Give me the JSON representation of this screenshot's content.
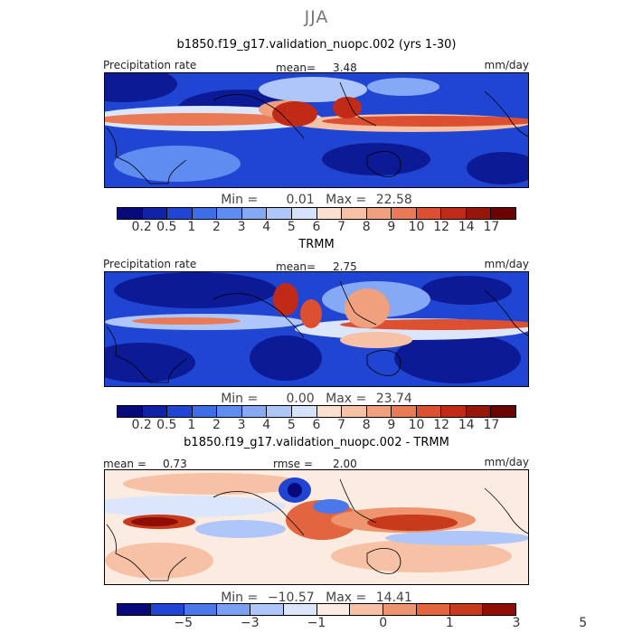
{
  "chart_data": {
    "type": "heatmap",
    "title": "JJA",
    "panels": [
      {
        "name": "model",
        "title": "b1850.f19_g17.validation_nuopc.002 (yrs 1-30)",
        "left_label": "Precipitation rate",
        "stat_label": "mean=",
        "stat_value": "3.48",
        "units": "mm/day",
        "min_label": "Min =",
        "min_value": "0.01",
        "max_label": "Max =",
        "max_value": "22.58",
        "levels": [
          "0.2",
          "0.5",
          "1",
          "2",
          "3",
          "4",
          "5",
          "6",
          "7",
          "8",
          "9",
          "10",
          "12",
          "14",
          "17"
        ]
      },
      {
        "name": "obs",
        "title": "TRMM",
        "left_label": "Precipitation rate",
        "stat_label": "mean=",
        "stat_value": "2.75",
        "units": "mm/day",
        "min_label": "Min =",
        "min_value": "0.00",
        "max_label": "Max =",
        "max_value": "23.74",
        "levels": [
          "0.2",
          "0.5",
          "1",
          "2",
          "3",
          "4",
          "5",
          "6",
          "7",
          "8",
          "9",
          "10",
          "12",
          "14",
          "17"
        ]
      },
      {
        "name": "diff",
        "title": "b1850.f19_g17.validation_nuopc.002 - TRMM",
        "left_label": "mean =",
        "left_value": "0.73",
        "stat_label": "rmse =",
        "stat_value": "2.00",
        "units": "mm/day",
        "min_label": "Min =",
        "min_value": "−10.57",
        "max_label": "Max =",
        "max_value": "14.41",
        "levels": [
          "−5",
          "−3",
          "−1",
          "0",
          "1",
          "3",
          "5"
        ]
      }
    ],
    "colors": {
      "sequential": [
        "#08097a",
        "#1022a8",
        "#1f45d2",
        "#3d6ee8",
        "#5f8cf0",
        "#86a9f5",
        "#aec6fa",
        "#d6e2fb",
        "#fbe0cf",
        "#f6c1a4",
        "#f0a07c",
        "#e97a55",
        "#dc4f31",
        "#c02a17",
        "#981608",
        "#6c0303"
      ],
      "diverging": [
        "#08097a",
        "#1f45d2",
        "#4a77ea",
        "#7aa0f3",
        "#aec6fa",
        "#dbe6fb",
        "#fcebe0",
        "#f6c1a4",
        "#ee9570",
        "#e2653f",
        "#c73a1c",
        "#8f0d05"
      ]
    }
  }
}
